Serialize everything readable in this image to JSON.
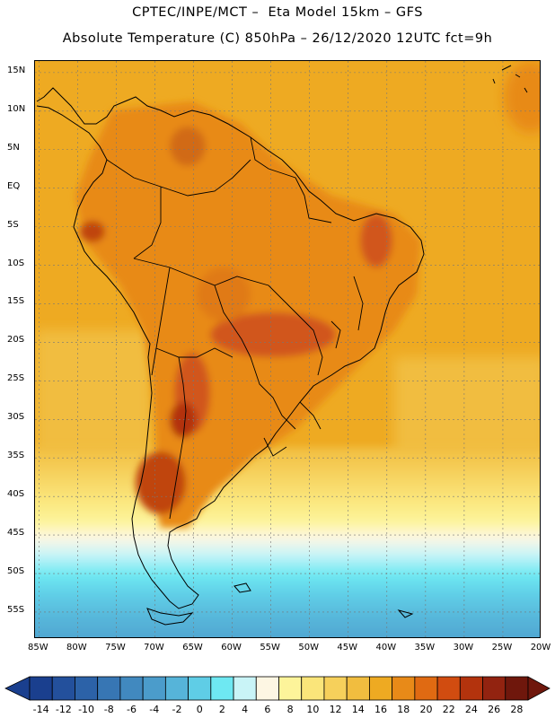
{
  "title": {
    "line1": "CPTEC/INPE/MCT –  Eta Model 15km – GFS",
    "line2": "Absolute Temperature (C) 850hPa – 26/12/2020 12UTC fct=9h"
  },
  "map": {
    "lat_labels": [
      "15N",
      "10N",
      "5N",
      "EQ",
      "5S",
      "10S",
      "15S",
      "20S",
      "25S",
      "30S",
      "35S",
      "40S",
      "45S",
      "50S",
      "55S"
    ],
    "lon_labels": [
      "85W",
      "80W",
      "75W",
      "70W",
      "65W",
      "60W",
      "55W",
      "50W",
      "45W",
      "40W",
      "35W",
      "30W",
      "25W",
      "20W"
    ],
    "lat_range": [
      16.5,
      -58.5
    ],
    "lon_range": [
      -85.5,
      -20
    ]
  },
  "colorbar": {
    "labels": [
      "-14",
      "-12",
      "-10",
      "-8",
      "-6",
      "-4",
      "-2",
      "0",
      "2",
      "4",
      "6",
      "8",
      "10",
      "12",
      "14",
      "16",
      "18",
      "20",
      "22",
      "24",
      "26",
      "28"
    ],
    "colors": [
      "#1a3f8e",
      "#23509c",
      "#2c62a8",
      "#3776b4",
      "#4189bf",
      "#4b9ccb",
      "#56b4d9",
      "#5fcde6",
      "#6ee8f2",
      "#c9f4f7",
      "#fdf6e3",
      "#fdf49a",
      "#fae57a",
      "#f6d05b",
      "#f1bd3f",
      "#eeaa22",
      "#e88a18",
      "#e06a12",
      "#d14c10",
      "#b3330d",
      "#922310",
      "#6f170c"
    ]
  }
}
